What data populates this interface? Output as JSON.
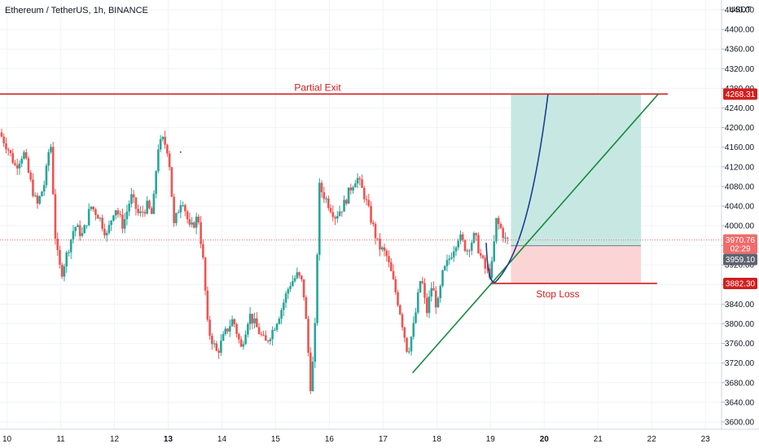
{
  "chart_data": {
    "type": "candlestick",
    "title": "Ethereum / TetherUS, 1h, BINANCE",
    "y_unit": "USDT",
    "y_ticks": [
      3600,
      3640,
      3680,
      3720,
      3760,
      3800,
      3840,
      3880,
      3920,
      3960,
      4000,
      4040,
      4080,
      4120,
      4160,
      4200,
      4240,
      4280,
      4320,
      4360,
      4400,
      4440
    ],
    "x_ticks": [
      {
        "label": "10",
        "day": 10,
        "bold": false
      },
      {
        "label": "11",
        "day": 11,
        "bold": false
      },
      {
        "label": "12",
        "day": 12,
        "bold": false
      },
      {
        "label": "13",
        "day": 13,
        "bold": true
      },
      {
        "label": "14",
        "day": 14,
        "bold": false
      },
      {
        "label": "15",
        "day": 15,
        "bold": false
      },
      {
        "label": "16",
        "day": 16,
        "bold": false
      },
      {
        "label": "17",
        "day": 17,
        "bold": false
      },
      {
        "label": "18",
        "day": 18,
        "bold": false
      },
      {
        "label": "19",
        "day": 19,
        "bold": false
      },
      {
        "label": "20",
        "day": 20,
        "bold": true
      },
      {
        "label": "21",
        "day": 21,
        "bold": false
      },
      {
        "label": "22",
        "day": 22,
        "bold": false
      },
      {
        "label": "23",
        "day": 23,
        "bold": false
      }
    ],
    "ylim": [
      3585,
      4460
    ],
    "xlim": [
      9.87,
      23.3
    ],
    "price_path": [
      [
        9.9,
        4190
      ],
      [
        10.05,
        4160
      ],
      [
        10.2,
        4120
      ],
      [
        10.35,
        4150
      ],
      [
        10.5,
        4080
      ],
      [
        10.6,
        4040
      ],
      [
        10.75,
        4090
      ],
      [
        10.85,
        4180
      ],
      [
        10.95,
        3960
      ],
      [
        11.05,
        3900
      ],
      [
        11.2,
        3960
      ],
      [
        11.3,
        4000
      ],
      [
        11.45,
        3980
      ],
      [
        11.6,
        4040
      ],
      [
        11.75,
        4020
      ],
      [
        11.9,
        3980
      ],
      [
        12.05,
        4040
      ],
      [
        12.2,
        4000
      ],
      [
        12.35,
        4060
      ],
      [
        12.5,
        4020
      ],
      [
        12.65,
        4040
      ],
      [
        12.75,
        4020
      ],
      [
        12.85,
        4160
      ],
      [
        12.95,
        4175
      ],
      [
        13.05,
        4150
      ],
      [
        13.15,
        4000
      ],
      [
        13.3,
        4060
      ],
      [
        13.45,
        3990
      ],
      [
        13.6,
        4020
      ],
      [
        13.7,
        3920
      ],
      [
        13.78,
        3790
      ],
      [
        13.95,
        3740
      ],
      [
        14.1,
        3780
      ],
      [
        14.25,
        3810
      ],
      [
        14.4,
        3750
      ],
      [
        14.55,
        3820
      ],
      [
        14.7,
        3790
      ],
      [
        14.85,
        3760
      ],
      [
        15.0,
        3790
      ],
      [
        15.15,
        3830
      ],
      [
        15.3,
        3880
      ],
      [
        15.45,
        3900
      ],
      [
        15.55,
        3880
      ],
      [
        15.62,
        3790
      ],
      [
        15.7,
        3660
      ],
      [
        15.78,
        3800
      ],
      [
        15.85,
        4080
      ],
      [
        16.0,
        4050
      ],
      [
        16.15,
        4020
      ],
      [
        16.3,
        4040
      ],
      [
        16.45,
        4080
      ],
      [
        16.55,
        4100
      ],
      [
        16.7,
        4060
      ],
      [
        16.85,
        4000
      ],
      [
        16.95,
        3960
      ],
      [
        17.1,
        3940
      ],
      [
        17.2,
        3900
      ],
      [
        17.35,
        3830
      ],
      [
        17.5,
        3740
      ],
      [
        17.62,
        3800
      ],
      [
        17.75,
        3900
      ],
      [
        17.85,
        3820
      ],
      [
        17.95,
        3880
      ],
      [
        18.05,
        3830
      ],
      [
        18.15,
        3900
      ],
      [
        18.3,
        3940
      ],
      [
        18.45,
        3980
      ],
      [
        18.6,
        3950
      ],
      [
        18.75,
        3980
      ],
      [
        18.85,
        3940
      ],
      [
        18.95,
        3910
      ],
      [
        19.05,
        3900
      ],
      [
        19.15,
        4010
      ],
      [
        19.25,
        3990
      ],
      [
        19.32,
        3970
      ]
    ],
    "last_price": 3970.76,
    "countdown": "02:29",
    "prev_price": 3959.1,
    "position": {
      "type": "long",
      "entry": 3959.1,
      "target": 4268.31,
      "stop": 3882.3,
      "x_start": 19.38,
      "x_end": 21.8,
      "target_color": "#c7e8e2",
      "stop_color": "#fbd4d6"
    },
    "horizontal_lines": [
      {
        "price": 4268.31,
        "label": "Partial Exit",
        "color": "#d21e1e",
        "x_start": 9.87,
        "x_end": 22.3
      },
      {
        "price": 3882.3,
        "label": "Stop Loss",
        "color": "#d21e1e",
        "x_start": 19.0,
        "x_end": 22.1
      }
    ],
    "trend_line": {
      "points": [
        [
          17.55,
          3700
        ],
        [
          22.12,
          4268
        ]
      ],
      "color": "#168a3e"
    },
    "curve": {
      "color": "#1c3f91",
      "points": [
        [
          18.92,
          3965
        ],
        [
          19.0,
          3885
        ],
        [
          19.45,
          3935
        ],
        [
          19.85,
          4090
        ],
        [
          20.07,
          4268
        ]
      ]
    },
    "price_tags": [
      {
        "price": 4268.31,
        "text": "4268.31",
        "bg": "#d21e1e"
      },
      {
        "price": 3970.76,
        "text": "3970.76",
        "bg": "#f26b6b"
      },
      {
        "price": 3959.1,
        "text": "3959.10",
        "bg": "#5d6470"
      },
      {
        "price": 3882.3,
        "text": "3882.30",
        "bg": "#d21e1e"
      }
    ],
    "colors": {
      "up": "#26a69a",
      "down": "#ef5350",
      "grid": "#f0f3fa"
    }
  }
}
